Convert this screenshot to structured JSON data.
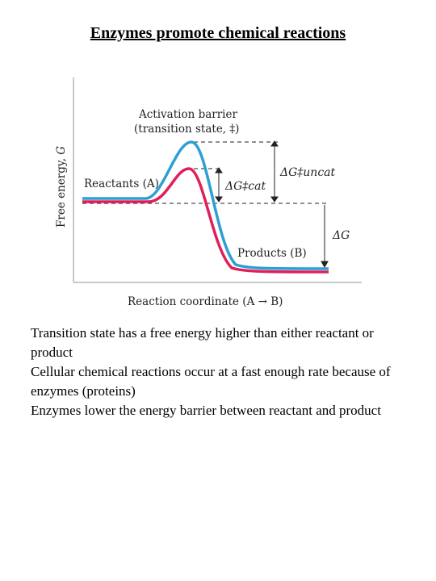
{
  "slide": {
    "title": "Enzymes promote chemical reactions"
  },
  "figure": {
    "y_axis_label_prefix": "Free energy, ",
    "y_axis_label_symbol": "G",
    "x_axis_label": "Reaction coordinate (A → B)",
    "barrier_label_line1": "Activation barrier",
    "barrier_label_line2": "(transition state, ‡)",
    "reactants_label": "Reactants (A)",
    "products_label": "Products (B)",
    "delta_g_cat_label": "ΔG‡cat",
    "delta_g_uncat_label": "ΔG‡uncat",
    "delta_g_label": "ΔG",
    "colors": {
      "uncatalyzed_curve": "#2e9fd6",
      "catalyzed_curve": "#e0205a",
      "frame": "#c8c8c8",
      "dashed_lines": "#222222"
    }
  },
  "notes": [
    "Transition state has a free energy higher than either reactant or product",
    "Cellular chemical reactions occur at a fast enough rate because of enzymes (proteins)",
    "Enzymes lower the energy barrier between reactant and product"
  ]
}
